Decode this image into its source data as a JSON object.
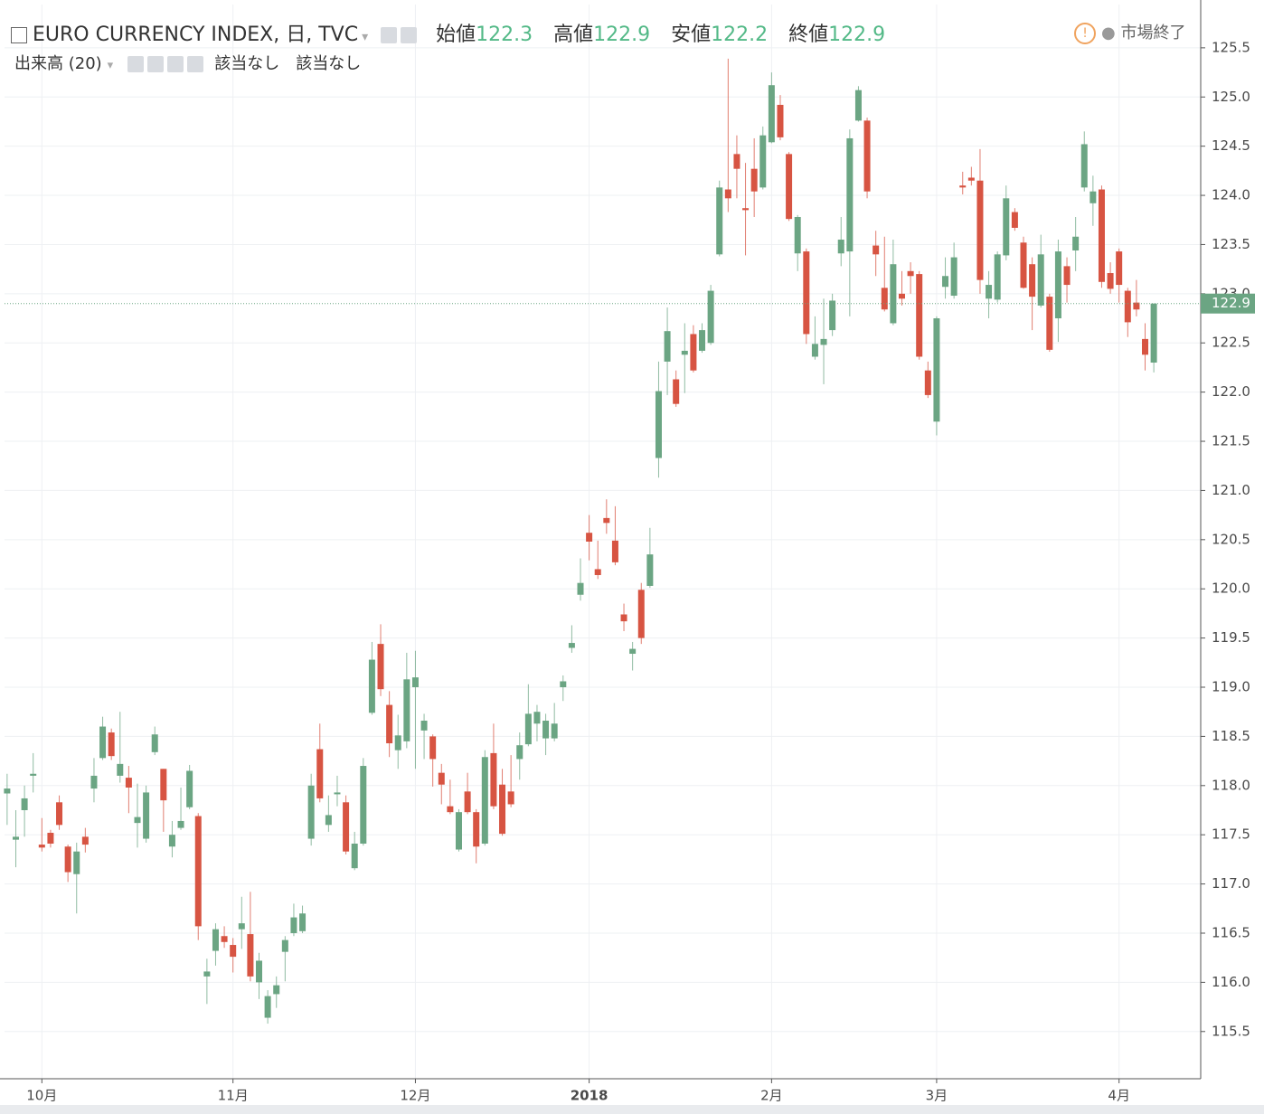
{
  "header": {
    "symbol": "EURO CURRENCY INDEX, 日, TVC",
    "open_label": "始値",
    "open": "122.3",
    "high_label": "高値",
    "high": "122.9",
    "low_label": "安値",
    "low": "122.2",
    "close_label": "終値",
    "close": "122.9",
    "status": "市場終了",
    "volume": "出来高 (20)",
    "na1": "該当なし",
    "na2": "該当なし"
  },
  "chart_data": {
    "type": "candlestick",
    "up_color": "#6ba583",
    "down_color": "#d75442",
    "grid": true,
    "xlim": [
      -0.3,
      137.4
    ],
    "xticks": [
      {
        "value": 4,
        "label": "10月"
      },
      {
        "value": 26,
        "label": "11月"
      },
      {
        "value": 47,
        "label": "12月"
      },
      {
        "value": 67,
        "label": "2018"
      },
      {
        "value": 88,
        "label": "2月"
      },
      {
        "value": 107,
        "label": "3月"
      },
      {
        "value": 128,
        "label": "4月"
      }
    ],
    "ylim": [
      115.02,
      125.94
    ],
    "yticks": [
      {
        "value": 115.5,
        "label": "115.5"
      },
      {
        "value": 116,
        "label": "116.0"
      },
      {
        "value": 116.5,
        "label": "116.5"
      },
      {
        "value": 117,
        "label": "117.0"
      },
      {
        "value": 117.5,
        "label": "117.5"
      },
      {
        "value": 118,
        "label": "118.0"
      },
      {
        "value": 118.5,
        "label": "118.5"
      },
      {
        "value": 119,
        "label": "119.0"
      },
      {
        "value": 119.5,
        "label": "119.5"
      },
      {
        "value": 120,
        "label": "120.0"
      },
      {
        "value": 120.5,
        "label": "120.5"
      },
      {
        "value": 121,
        "label": "121.0"
      },
      {
        "value": 121.5,
        "label": "121.5"
      },
      {
        "value": 122,
        "label": "122.0"
      },
      {
        "value": 122.5,
        "label": "122.5"
      },
      {
        "value": 123,
        "label": "123.0"
      },
      {
        "value": 123.5,
        "label": "123.5"
      },
      {
        "value": 124,
        "label": "124.0"
      },
      {
        "value": 124.5,
        "label": "124.5"
      },
      {
        "value": 125,
        "label": "125.0"
      },
      {
        "value": 125.5,
        "label": "125.5"
      }
    ],
    "last": {
      "value": 122.9,
      "label": "122.9"
    },
    "open": [
      117.92,
      117.45,
      117.75,
      118.1,
      117.4,
      117.52,
      117.83,
      117.38,
      117.1,
      117.48,
      117.97,
      118.28,
      118.54,
      118.1,
      118.08,
      117.62,
      117.46,
      118.34,
      118.17,
      117.38,
      117.57,
      117.78,
      117.69,
      116.06,
      116.32,
      116.47,
      116.38,
      116.54,
      116.49,
      116.0,
      115.64,
      115.88,
      116.31,
      116.5,
      116.52,
      117.46,
      118.37,
      117.6,
      117.92,
      117.83,
      117.16,
      117.41,
      118.74,
      119.44,
      118.82,
      118.36,
      118.45,
      119.0,
      118.56,
      118.5,
      118.13,
      117.79,
      117.35,
      117.94,
      117.73,
      117.41,
      118.33,
      118.01,
      117.94,
      118.27,
      118.42,
      118.63,
      118.48,
      118.48,
      119.0,
      119.4,
      119.94,
      120.57,
      120.2,
      120.72,
      120.49,
      119.74,
      119.34,
      119.99,
      120.03,
      121.33,
      122.31,
      122.13,
      122.38,
      122.59,
      122.42,
      122.5,
      123.4,
      124.06,
      124.42,
      123.87,
      124.27,
      124.08,
      124.54,
      124.92,
      124.42,
      123.41,
      123.43,
      122.36,
      122.48,
      122.63,
      123.41,
      123.43,
      124.76,
      124.76,
      123.49,
      123.06,
      122.7,
      123.0,
      123.23,
      123.2,
      122.22,
      121.7,
      123.07,
      122.98,
      124.1,
      124.18,
      124.15,
      122.95,
      122.94,
      123.39,
      123.83,
      123.52,
      123.3,
      122.88,
      122.97,
      122.75,
      123.28,
      123.44,
      124.08,
      123.92,
      124.06,
      123.21,
      123.43,
      123.03,
      122.91,
      122.54,
      122.3
    ],
    "high": [
      118.12,
      117.75,
      118.0,
      118.33,
      117.67,
      117.55,
      117.9,
      117.4,
      117.42,
      117.57,
      118.28,
      118.7,
      118.58,
      118.75,
      118.2,
      118.02,
      118.0,
      118.6,
      118.17,
      117.64,
      117.98,
      118.21,
      117.72,
      116.24,
      116.6,
      116.57,
      116.45,
      116.87,
      116.92,
      116.3,
      115.92,
      116.06,
      116.47,
      116.8,
      116.78,
      118.12,
      118.63,
      117.9,
      118.1,
      117.9,
      117.53,
      118.28,
      119.46,
      119.64,
      118.96,
      118.72,
      119.35,
      119.37,
      118.73,
      118.52,
      118.22,
      118.06,
      117.76,
      118.13,
      117.76,
      118.36,
      118.63,
      118.17,
      118.31,
      118.54,
      119.03,
      118.82,
      118.73,
      118.84,
      119.12,
      119.63,
      120.31,
      120.75,
      120.49,
      120.91,
      120.84,
      119.85,
      119.46,
      120.06,
      120.62,
      122.31,
      122.86,
      122.22,
      122.7,
      122.68,
      122.7,
      123.09,
      124.15,
      125.39,
      124.61,
      124.33,
      124.58,
      124.7,
      125.25,
      125.02,
      124.44,
      123.8,
      123.46,
      122.77,
      122.95,
      123.0,
      123.78,
      124.67,
      125.11,
      124.79,
      123.64,
      123.58,
      123.55,
      123.23,
      123.32,
      123.23,
      122.31,
      122.77,
      123.37,
      123.52,
      124.24,
      124.29,
      124.47,
      123.23,
      123.43,
      124.1,
      123.87,
      123.58,
      123.37,
      123.6,
      123.0,
      123.55,
      123.37,
      123.78,
      124.65,
      124.2,
      124.1,
      123.32,
      123.46,
      123.06,
      123.14,
      122.7,
      122.9
    ],
    "low": [
      117.6,
      117.17,
      117.48,
      117.93,
      117.33,
      117.37,
      117.55,
      117.02,
      116.7,
      117.32,
      117.83,
      118.26,
      118.26,
      118.03,
      117.72,
      117.37,
      117.42,
      118.31,
      117.53,
      117.27,
      117.55,
      117.76,
      116.43,
      115.78,
      116.17,
      116.35,
      116.1,
      116.34,
      116.01,
      115.83,
      115.58,
      115.74,
      116.01,
      116.47,
      116.5,
      117.39,
      117.83,
      117.53,
      117.79,
      117.3,
      117.14,
      117.39,
      118.72,
      118.91,
      118.29,
      118.17,
      118.38,
      118.17,
      118.27,
      117.99,
      117.81,
      117.71,
      117.33,
      117.71,
      117.21,
      117.39,
      117.76,
      117.49,
      117.78,
      118.06,
      118.4,
      118.45,
      118.31,
      118.45,
      118.86,
      119.35,
      119.88,
      120.29,
      120.1,
      120.56,
      120.24,
      119.57,
      119.17,
      119.44,
      120.01,
      121.13,
      121.97,
      121.85,
      121.99,
      122.2,
      122.4,
      122.48,
      123.38,
      123.83,
      123.97,
      123.39,
      123.78,
      124.06,
      124.53,
      124.56,
      123.74,
      123.23,
      122.49,
      122.33,
      122.08,
      122.57,
      123.28,
      122.77,
      124.75,
      123.97,
      123.18,
      122.82,
      122.68,
      122.88,
      123.0,
      122.33,
      121.94,
      121.56,
      122.95,
      122.95,
      124.01,
      124.1,
      123.0,
      122.75,
      122.91,
      123.34,
      123.64,
      123.05,
      122.63,
      122.86,
      122.41,
      122.51,
      122.91,
      123.23,
      124.04,
      123.69,
      123.06,
      123.0,
      122.91,
      122.56,
      122.77,
      122.22,
      122.2
    ],
    "close": [
      117.97,
      117.48,
      117.87,
      118.12,
      117.37,
      117.41,
      117.6,
      117.12,
      117.33,
      117.4,
      118.1,
      118.6,
      118.3,
      118.22,
      117.98,
      117.68,
      117.93,
      118.52,
      117.85,
      117.5,
      117.64,
      118.15,
      116.57,
      116.11,
      116.54,
      116.41,
      116.26,
      116.6,
      116.06,
      116.22,
      115.86,
      115.97,
      116.43,
      116.66,
      116.7,
      118.0,
      117.87,
      117.7,
      117.93,
      117.33,
      117.41,
      118.2,
      119.28,
      118.98,
      118.43,
      118.51,
      119.08,
      119.1,
      118.66,
      118.27,
      118.01,
      117.73,
      117.73,
      117.73,
      117.38,
      118.29,
      117.79,
      117.51,
      117.81,
      118.41,
      118.73,
      118.75,
      118.66,
      118.63,
      119.06,
      119.45,
      120.06,
      120.48,
      120.14,
      120.67,
      120.27,
      119.67,
      119.39,
      119.5,
      120.35,
      122.01,
      122.62,
      121.88,
      122.42,
      122.22,
      122.63,
      123.03,
      124.08,
      123.97,
      124.27,
      123.85,
      124.04,
      124.61,
      125.12,
      124.59,
      123.76,
      123.78,
      122.59,
      122.49,
      122.54,
      122.93,
      123.55,
      124.58,
      125.07,
      124.04,
      123.4,
      122.84,
      123.3,
      122.95,
      123.18,
      122.36,
      121.97,
      122.75,
      123.18,
      123.37,
      124.08,
      124.15,
      123.14,
      123.09,
      123.4,
      123.97,
      123.67,
      123.06,
      122.97,
      123.4,
      122.43,
      123.43,
      123.09,
      123.58,
      124.52,
      124.04,
      123.12,
      123.05,
      123.09,
      122.71,
      122.84,
      122.38,
      122.9
    ]
  }
}
